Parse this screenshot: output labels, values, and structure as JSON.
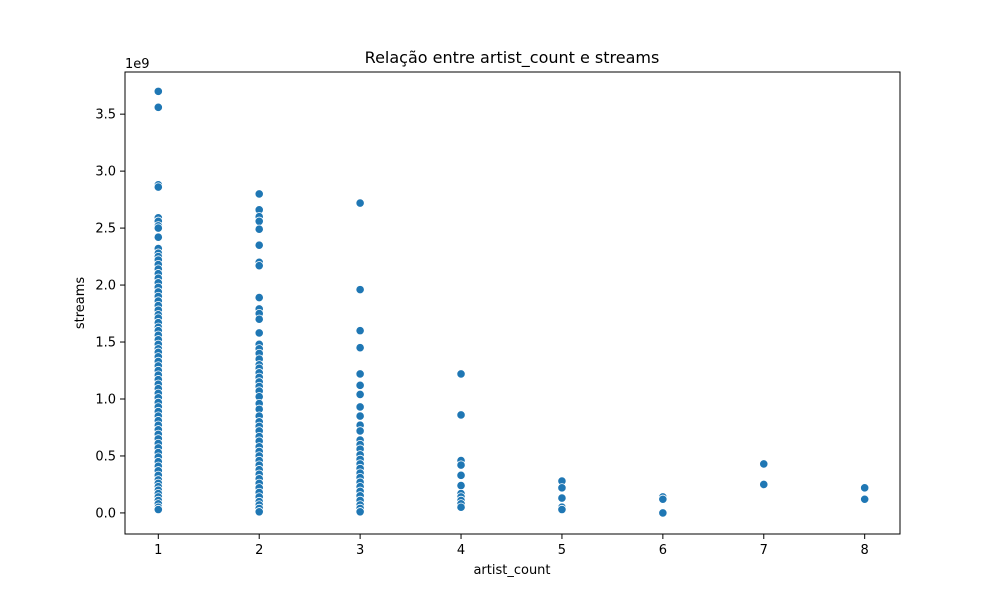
{
  "chart_data": {
    "type": "scatter",
    "title": "Relação entre artist_count e streams",
    "xlabel": "artist_count",
    "ylabel": "streams",
    "y_offset_label": "1e9",
    "xlim": [
      0.67,
      8.35
    ],
    "ylim": [
      -0.185,
      3.87
    ],
    "x_ticks": [
      1,
      2,
      3,
      4,
      5,
      6,
      7,
      8
    ],
    "y_ticks": [
      0.0,
      0.5,
      1.0,
      1.5,
      2.0,
      2.5,
      3.0,
      3.5
    ],
    "y_tick_labels": [
      "0.0",
      "0.5",
      "1.0",
      "1.5",
      "2.0",
      "2.5",
      "3.0",
      "3.5"
    ],
    "grid": false,
    "legend": "none",
    "marker_color": "#1f77b4",
    "points": [
      [
        1,
        3.7
      ],
      [
        1,
        3.56
      ],
      [
        1,
        2.88
      ],
      [
        1,
        2.86
      ],
      [
        1,
        2.59
      ],
      [
        1,
        2.56
      ],
      [
        1,
        2.52
      ],
      [
        1,
        2.5
      ],
      [
        1,
        2.42
      ],
      [
        1,
        2.32
      ],
      [
        1,
        2.28
      ],
      [
        1,
        2.25
      ],
      [
        1,
        2.22
      ],
      [
        1,
        2.18
      ],
      [
        1,
        2.14
      ],
      [
        1,
        2.1
      ],
      [
        1,
        2.06
      ],
      [
        1,
        2.02
      ],
      [
        1,
        1.98
      ],
      [
        1,
        1.94
      ],
      [
        1,
        1.9
      ],
      [
        1,
        1.86
      ],
      [
        1,
        1.82
      ],
      [
        1,
        1.78
      ],
      [
        1,
        1.74
      ],
      [
        1,
        1.71
      ],
      [
        1,
        1.67
      ],
      [
        1,
        1.63
      ],
      [
        1,
        1.6
      ],
      [
        1,
        1.56
      ],
      [
        1,
        1.52
      ],
      [
        1,
        1.48
      ],
      [
        1,
        1.44
      ],
      [
        1,
        1.41
      ],
      [
        1,
        1.37
      ],
      [
        1,
        1.33
      ],
      [
        1,
        1.29
      ],
      [
        1,
        1.25
      ],
      [
        1,
        1.21
      ],
      [
        1,
        1.17
      ],
      [
        1,
        1.13
      ],
      [
        1,
        1.09
      ],
      [
        1,
        1.05
      ],
      [
        1,
        1.01
      ],
      [
        1,
        0.97
      ],
      [
        1,
        0.93
      ],
      [
        1,
        0.89
      ],
      [
        1,
        0.85
      ],
      [
        1,
        0.81
      ],
      [
        1,
        0.77
      ],
      [
        1,
        0.73
      ],
      [
        1,
        0.69
      ],
      [
        1,
        0.65
      ],
      [
        1,
        0.61
      ],
      [
        1,
        0.57
      ],
      [
        1,
        0.53
      ],
      [
        1,
        0.49
      ],
      [
        1,
        0.45
      ],
      [
        1,
        0.41
      ],
      [
        1,
        0.37
      ],
      [
        1,
        0.33
      ],
      [
        1,
        0.29
      ],
      [
        1,
        0.26
      ],
      [
        1,
        0.23
      ],
      [
        1,
        0.2
      ],
      [
        1,
        0.17
      ],
      [
        1,
        0.14
      ],
      [
        1,
        0.11
      ],
      [
        1,
        0.08
      ],
      [
        1,
        0.05
      ],
      [
        1,
        0.03
      ],
      [
        2,
        2.8
      ],
      [
        2,
        2.66
      ],
      [
        2,
        2.6
      ],
      [
        2,
        2.56
      ],
      [
        2,
        2.49
      ],
      [
        2,
        2.35
      ],
      [
        2,
        2.2
      ],
      [
        2,
        2.17
      ],
      [
        2,
        1.89
      ],
      [
        2,
        1.79
      ],
      [
        2,
        1.75
      ],
      [
        2,
        1.7
      ],
      [
        2,
        1.58
      ],
      [
        2,
        1.48
      ],
      [
        2,
        1.44
      ],
      [
        2,
        1.4
      ],
      [
        2,
        1.35
      ],
      [
        2,
        1.3
      ],
      [
        2,
        1.27
      ],
      [
        2,
        1.23
      ],
      [
        2,
        1.19
      ],
      [
        2,
        1.15
      ],
      [
        2,
        1.11
      ],
      [
        2,
        1.07
      ],
      [
        2,
        1.02
      ],
      [
        2,
        0.96
      ],
      [
        2,
        0.91
      ],
      [
        2,
        0.85
      ],
      [
        2,
        0.8
      ],
      [
        2,
        0.76
      ],
      [
        2,
        0.72
      ],
      [
        2,
        0.67
      ],
      [
        2,
        0.63
      ],
      [
        2,
        0.58
      ],
      [
        2,
        0.54
      ],
      [
        2,
        0.5
      ],
      [
        2,
        0.46
      ],
      [
        2,
        0.42
      ],
      [
        2,
        0.38
      ],
      [
        2,
        0.34
      ],
      [
        2,
        0.3
      ],
      [
        2,
        0.26
      ],
      [
        2,
        0.22
      ],
      [
        2,
        0.18
      ],
      [
        2,
        0.14
      ],
      [
        2,
        0.1
      ],
      [
        2,
        0.07
      ],
      [
        2,
        0.04
      ],
      [
        2,
        0.01
      ],
      [
        3,
        2.72
      ],
      [
        3,
        1.96
      ],
      [
        3,
        1.6
      ],
      [
        3,
        1.45
      ],
      [
        3,
        1.22
      ],
      [
        3,
        1.12
      ],
      [
        3,
        1.04
      ],
      [
        3,
        0.93
      ],
      [
        3,
        0.85
      ],
      [
        3,
        0.77
      ],
      [
        3,
        0.72
      ],
      [
        3,
        0.64
      ],
      [
        3,
        0.6
      ],
      [
        3,
        0.56
      ],
      [
        3,
        0.51
      ],
      [
        3,
        0.47
      ],
      [
        3,
        0.43
      ],
      [
        3,
        0.39
      ],
      [
        3,
        0.35
      ],
      [
        3,
        0.31
      ],
      [
        3,
        0.27
      ],
      [
        3,
        0.23
      ],
      [
        3,
        0.19
      ],
      [
        3,
        0.15
      ],
      [
        3,
        0.11
      ],
      [
        3,
        0.07
      ],
      [
        3,
        0.04
      ],
      [
        3,
        0.01
      ],
      [
        4,
        1.22
      ],
      [
        4,
        0.86
      ],
      [
        4,
        0.46
      ],
      [
        4,
        0.42
      ],
      [
        4,
        0.33
      ],
      [
        4,
        0.24
      ],
      [
        4,
        0.17
      ],
      [
        4,
        0.14
      ],
      [
        4,
        0.11
      ],
      [
        4,
        0.08
      ],
      [
        4,
        0.05
      ],
      [
        5,
        0.28
      ],
      [
        5,
        0.22
      ],
      [
        5,
        0.13
      ],
      [
        5,
        0.05
      ],
      [
        5,
        0.03
      ],
      [
        6,
        0.14
      ],
      [
        6,
        0.12
      ],
      [
        6,
        0.0
      ],
      [
        7,
        0.43
      ],
      [
        7,
        0.25
      ],
      [
        8,
        0.22
      ],
      [
        8,
        0.12
      ]
    ]
  }
}
